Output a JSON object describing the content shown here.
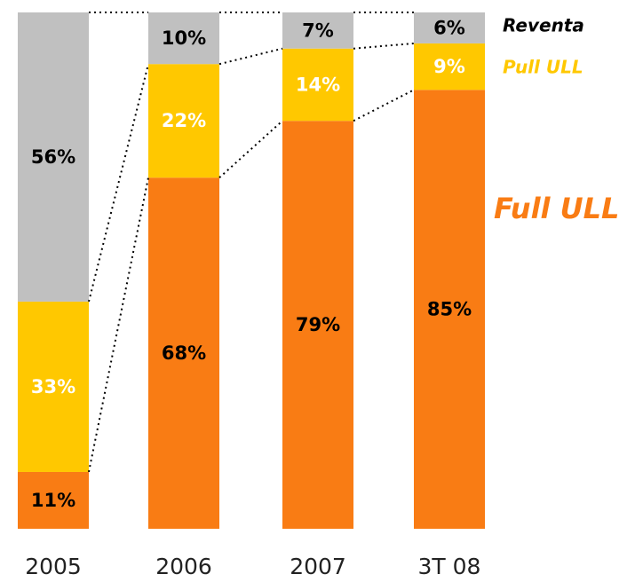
{
  "chart_data": {
    "type": "stacked_bar",
    "categories": [
      "2005",
      "2006",
      "2007",
      "3T 08"
    ],
    "ylim": [
      0,
      100
    ],
    "series": [
      {
        "name": "Full ULL",
        "color": "#f97c14",
        "label_color": "#000000",
        "values": [
          11,
          68,
          79,
          85
        ],
        "value_labels": [
          "11%",
          "68%",
          "79%",
          "85%"
        ]
      },
      {
        "name": "Pull ULL",
        "color": "#ffc800",
        "label_color": "#ffffff",
        "values": [
          33,
          22,
          14,
          9
        ],
        "value_labels": [
          "33%",
          "22%",
          "14%",
          "9%"
        ]
      },
      {
        "name": "Reventa",
        "color": "#c0c0c0",
        "label_color": "#000000",
        "values": [
          56,
          10,
          7,
          6
        ],
        "value_labels": [
          "56%",
          "10%",
          "7%",
          "6%"
        ]
      }
    ]
  }
}
